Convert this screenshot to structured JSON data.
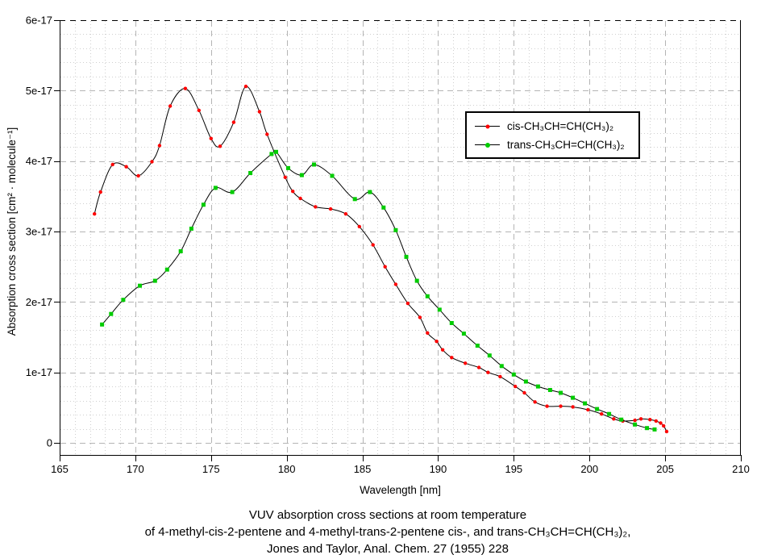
{
  "figure": {
    "background": "#ffffff",
    "axis_color": "#000000",
    "major_grid_color": "#b4b4b4",
    "minor_grid_color": "#cfcfcf",
    "top_border_style": "dashed-black"
  },
  "chart_data": {
    "type": "line",
    "title": "",
    "xlabel": "Wavelength [nm]",
    "ylabel": "Absorption cross section [cm² · molecule⁻¹]",
    "xlim": [
      165,
      210
    ],
    "ylim_e17": [
      0,
      6
    ],
    "y_scale": "1e-17",
    "x_ticks": [
      165,
      170,
      175,
      180,
      185,
      190,
      195,
      200,
      205,
      210
    ],
    "y_tick_values_e17": [
      0,
      1,
      2,
      3,
      4,
      5,
      6
    ],
    "y_tick_labels": [
      "0",
      "1e-17",
      "2e-17",
      "3e-17",
      "4e-17",
      "5e-17",
      "6e-17"
    ],
    "grid": {
      "major": true,
      "minor": true,
      "x_minor_step_nm": 1,
      "y_minor_step_e17": 0.2
    },
    "legend_position": "upper-right-inside",
    "line_color": "#000000",
    "series": [
      {
        "name": "cis-CH₃CH=CH(CH₃)₂",
        "marker_color": "#ff0000",
        "marker": "dot",
        "x": [
          167.3,
          167.7,
          168.5,
          169.4,
          170.2,
          171.1,
          171.6,
          172.3,
          173.3,
          174.2,
          175.0,
          175.6,
          176.5,
          177.3,
          178.2,
          178.7,
          179.9,
          180.4,
          180.9,
          181.9,
          182.9,
          183.9,
          184.8,
          185.7,
          186.5,
          187.2,
          188.0,
          188.8,
          189.3,
          189.9,
          190.3,
          190.9,
          191.8,
          192.7,
          193.3,
          194.1,
          195.1,
          195.7,
          196.4,
          197.2,
          198.1,
          198.9,
          199.9,
          200.8,
          201.6,
          202.2,
          203.0,
          203.4,
          204.0,
          204.4,
          204.7,
          204.9,
          205.1
        ],
        "y_e17": [
          3.25,
          3.56,
          3.95,
          3.92,
          3.79,
          3.99,
          4.22,
          4.78,
          5.03,
          4.72,
          4.32,
          4.21,
          4.55,
          5.06,
          4.7,
          4.38,
          3.77,
          3.57,
          3.47,
          3.35,
          3.32,
          3.25,
          3.07,
          2.81,
          2.5,
          2.25,
          1.98,
          1.78,
          1.56,
          1.44,
          1.32,
          1.21,
          1.13,
          1.07,
          1.0,
          0.94,
          0.8,
          0.71,
          0.58,
          0.52,
          0.52,
          0.51,
          0.47,
          0.41,
          0.34,
          0.31,
          0.32,
          0.34,
          0.33,
          0.31,
          0.28,
          0.24,
          0.16
        ]
      },
      {
        "name": "trans-CH₃CH=CH(CH₃)₂",
        "marker_color": "#00cc00",
        "marker": "square",
        "x": [
          167.8,
          168.4,
          169.2,
          170.3,
          171.3,
          172.1,
          173.0,
          173.7,
          174.5,
          175.3,
          176.4,
          177.6,
          179.0,
          179.3,
          180.1,
          181.0,
          181.8,
          183.0,
          184.5,
          185.5,
          186.4,
          187.2,
          187.9,
          188.6,
          189.3,
          190.1,
          190.9,
          191.7,
          192.6,
          193.4,
          194.2,
          195.0,
          195.8,
          196.6,
          197.4,
          198.1,
          198.9,
          199.7,
          200.5,
          201.3,
          202.1,
          203.0,
          203.8,
          204.3
        ],
        "y_e17": [
          1.68,
          1.83,
          2.03,
          2.23,
          2.3,
          2.46,
          2.72,
          3.04,
          3.38,
          3.62,
          3.56,
          3.83,
          4.1,
          4.13,
          3.9,
          3.8,
          3.95,
          3.79,
          3.46,
          3.56,
          3.34,
          3.02,
          2.64,
          2.3,
          2.08,
          1.89,
          1.7,
          1.55,
          1.38,
          1.24,
          1.09,
          0.97,
          0.87,
          0.8,
          0.75,
          0.71,
          0.64,
          0.56,
          0.48,
          0.41,
          0.33,
          0.26,
          0.21,
          0.19
        ]
      }
    ],
    "caption": [
      "VUV absorption cross sections at room temperature",
      "of 4-methyl-cis-2-pentene and 4-methyl-trans-2-pentene cis-, and trans-CH₃CH=CH(CH₃)₂,",
      "Jones and Taylor, Anal. Chem. 27 (1955) 228"
    ]
  }
}
